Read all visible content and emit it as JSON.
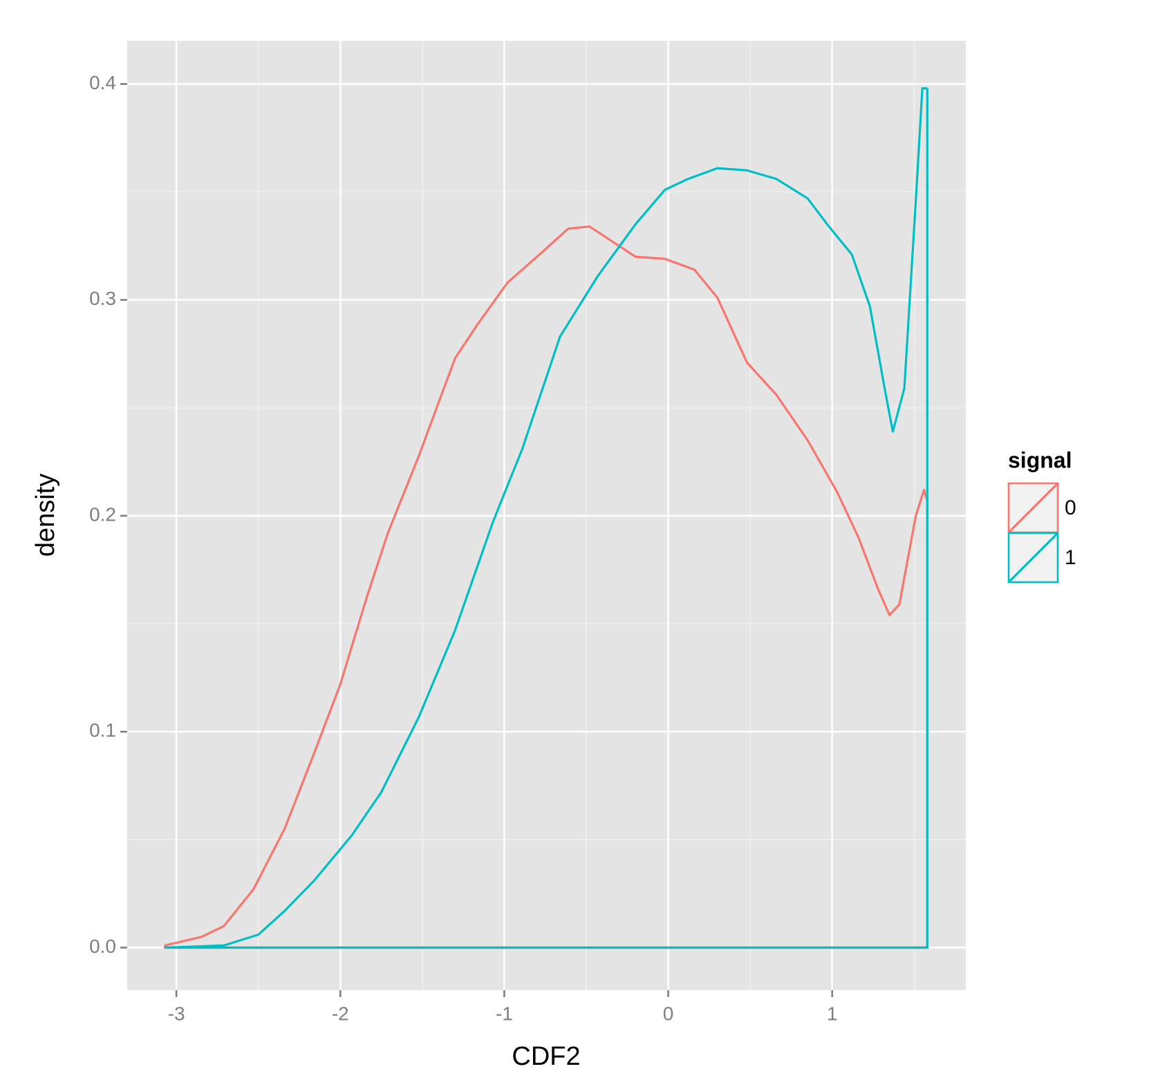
{
  "chart_data": {
    "type": "density",
    "x_label": "CDF2",
    "y_label": "density",
    "legend_title": "signal",
    "legend_position": "right",
    "xlim": [
      -3.3,
      1.815
    ],
    "ylim": [
      -0.0197,
      0.42
    ],
    "xticks": [
      -3,
      -2,
      -1,
      0,
      1
    ],
    "yticks": [
      {
        "value": 0,
        "label": "0.0"
      },
      {
        "value": 0.1,
        "label": "0.1"
      },
      {
        "value": 0.2,
        "label": "0.2"
      },
      {
        "value": 0.3,
        "label": "0.3"
      },
      {
        "value": 0.4,
        "label": "0.4"
      }
    ],
    "x_minor_grid": [
      -2.5,
      -1.5,
      -0.5,
      0.5,
      1.5
    ],
    "y_minor_grid": [
      0.05,
      0.15,
      0.25,
      0.35
    ],
    "grid": true,
    "series": [
      {
        "name": "0",
        "color": "#f8766d",
        "x": [
          -3.07,
          -2.845,
          -2.71,
          -2.53,
          -2.34,
          -2.16,
          -2.0,
          -1.84,
          -1.71,
          -1.52,
          -1.3,
          -1.16,
          -0.98,
          -0.8,
          -0.61,
          -0.48,
          -0.34,
          -0.2,
          -0.02,
          0.16,
          0.3,
          0.48,
          0.66,
          0.85,
          1.03,
          1.16,
          1.28,
          1.35,
          1.41,
          1.51,
          1.56,
          1.58
        ],
        "values": [
          0.001,
          0.005,
          0.01,
          0.027,
          0.055,
          0.09,
          0.122,
          0.162,
          0.192,
          0.228,
          0.273,
          0.289,
          0.308,
          0.32,
          0.333,
          0.334,
          0.327,
          0.32,
          0.319,
          0.314,
          0.301,
          0.271,
          0.256,
          0.235,
          0.211,
          0.19,
          0.166,
          0.154,
          0.159,
          0.2,
          0.212,
          0.207
        ]
      },
      {
        "name": "1",
        "color": "#00bfc4",
        "x": [
          -3.07,
          -2.71,
          -2.5,
          -2.34,
          -2.16,
          -1.93,
          -1.75,
          -1.52,
          -1.3,
          -1.07,
          -0.89,
          -0.66,
          -0.43,
          -0.2,
          -0.02,
          0.12,
          0.3,
          0.48,
          0.66,
          0.85,
          0.98,
          1.12,
          1.23,
          1.32,
          1.37,
          1.44,
          1.51,
          1.55,
          1.58
        ],
        "values": [
          0.0,
          0.001,
          0.006,
          0.017,
          0.031,
          0.052,
          0.072,
          0.107,
          0.147,
          0.197,
          0.231,
          0.283,
          0.311,
          0.335,
          0.351,
          0.356,
          0.361,
          0.36,
          0.356,
          0.347,
          0.334,
          0.321,
          0.297,
          0.259,
          0.239,
          0.259,
          0.346,
          0.398,
          0.398
        ]
      }
    ]
  }
}
